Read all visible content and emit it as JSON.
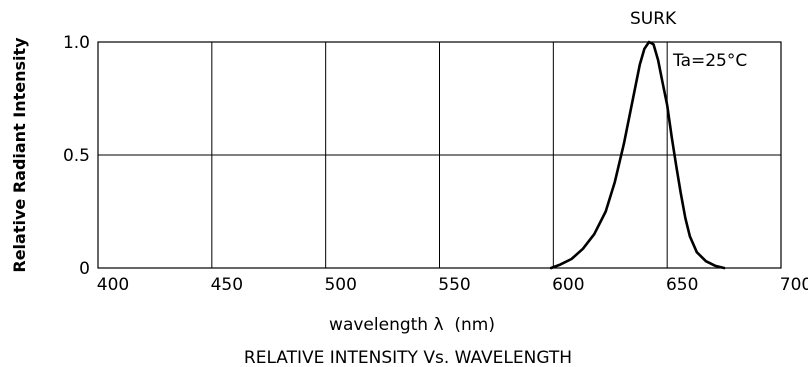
{
  "chart_data": {
    "type": "line",
    "title": "RELATIVE INTENSITY Vs. WAVELENGTH",
    "xlabel": "wavelength λ  (nm)",
    "ylabel": "Relative Radiant Intensity",
    "xlim": [
      400,
      700
    ],
    "ylim": [
      0,
      1.0
    ],
    "x_ticks": [
      400,
      450,
      500,
      550,
      600,
      650,
      700
    ],
    "x_tick_labels": [
      "400",
      "450",
      "500",
      "550",
      "600",
      "650",
      "700"
    ],
    "y_ticks": [
      0,
      0.5,
      1.0
    ],
    "y_tick_labels": [
      "0",
      "0.5",
      "1.0"
    ],
    "grid": true,
    "series": [
      {
        "name": "SURK",
        "x": [
          599,
          603,
          608,
          613,
          618,
          623,
          627,
          631,
          635,
          638,
          640,
          642,
          644,
          646,
          648,
          650,
          652,
          654,
          656,
          658,
          660,
          663,
          667,
          671,
          675
        ],
        "y": [
          0.0,
          0.015,
          0.04,
          0.085,
          0.15,
          0.25,
          0.38,
          0.55,
          0.75,
          0.9,
          0.97,
          1.0,
          0.99,
          0.92,
          0.82,
          0.72,
          0.58,
          0.45,
          0.33,
          0.22,
          0.14,
          0.07,
          0.03,
          0.01,
          0.0
        ]
      }
    ],
    "annotations": [
      "SURK",
      "Ta=25°C"
    ]
  }
}
